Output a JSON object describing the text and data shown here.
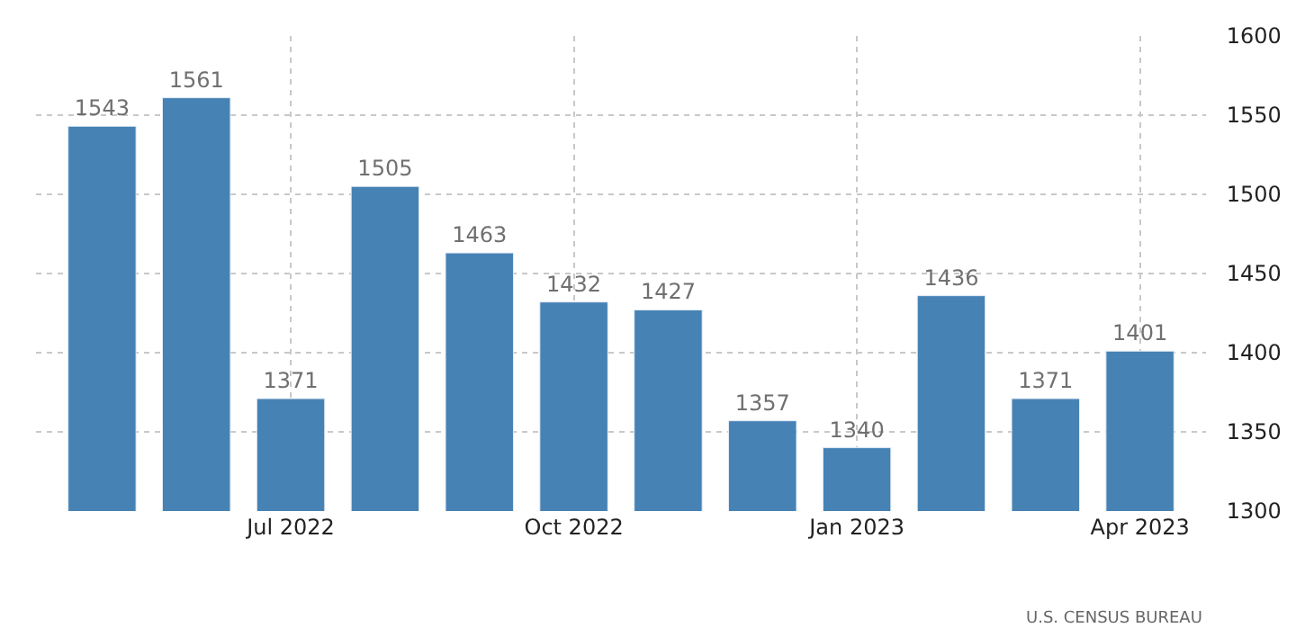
{
  "chart_data": {
    "type": "bar",
    "categories": [
      null,
      null,
      "Jul 2022",
      null,
      null,
      "Oct 2022",
      null,
      null,
      "Jan 2023",
      null,
      null,
      "Apr 2023"
    ],
    "values": [
      1543,
      1561,
      1371,
      1505,
      1463,
      1432,
      1427,
      1357,
      1340,
      1436,
      1371,
      1401
    ],
    "color": "#4682b4",
    "ylim": [
      1300,
      1600
    ],
    "yticks": [
      1300,
      1350,
      1400,
      1450,
      1500,
      1550,
      1600
    ],
    "grid": true,
    "data_labels": true,
    "annotations": [
      "U.S. CENSUS BUREAU"
    ]
  }
}
